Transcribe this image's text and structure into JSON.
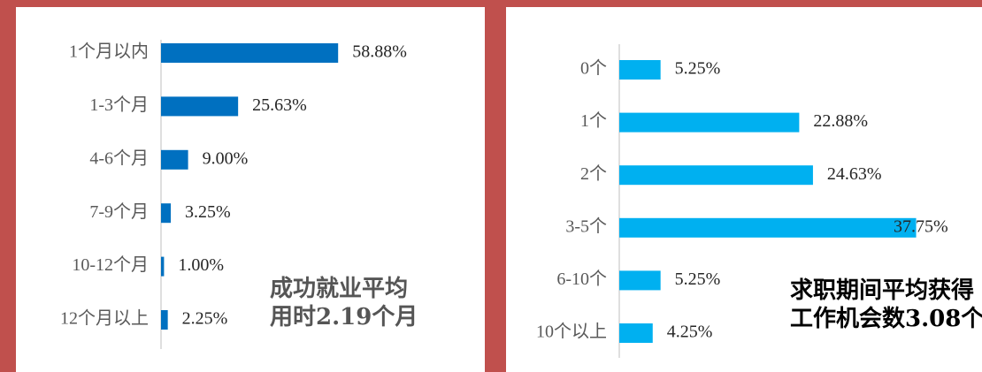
{
  "chart_data": [
    {
      "type": "bar",
      "orientation": "horizontal",
      "categories": [
        "1个月以内",
        "1-3个月",
        "4-6个月",
        "7-9个月",
        "10-12个月",
        "12个月以上"
      ],
      "values": [
        58.88,
        25.63,
        9.0,
        3.25,
        1.0,
        2.25
      ],
      "value_labels": [
        "58.88%",
        "25.63%",
        "9.00%",
        "3.25%",
        "1.00%",
        "2.25%"
      ],
      "color": "#0070c0",
      "xlim": [
        0,
        100
      ],
      "annotations": [
        "成功就业平均",
        "用时2.19个月"
      ]
    },
    {
      "type": "bar",
      "orientation": "horizontal",
      "categories": [
        "0个",
        "1个",
        "2个",
        "3-5个",
        "6-10个",
        "10个以上"
      ],
      "values": [
        5.25,
        22.88,
        24.63,
        37.75,
        5.25,
        4.25
      ],
      "value_labels": [
        "5.25%",
        "22.88%",
        "24.63%",
        "37.75%",
        "5.25%",
        "4.25%"
      ],
      "color": "#00b0f0",
      "xlim": [
        0,
        45
      ],
      "annotations": [
        "求职期间平均获得",
        "工作机会数3.08个"
      ]
    }
  ]
}
